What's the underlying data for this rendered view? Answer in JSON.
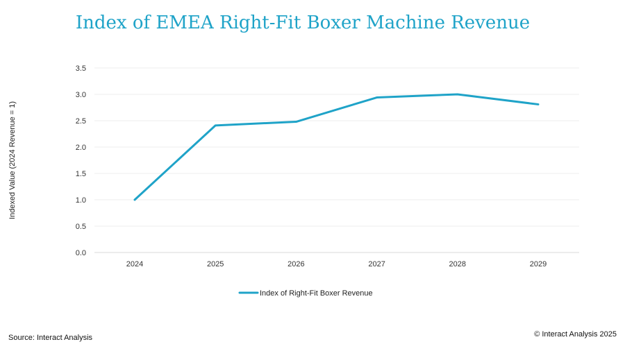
{
  "chart_data": {
    "type": "line",
    "title": "Index of EMEA Right-Fit Boxer Machine Revenue",
    "xlabel": "",
    "ylabel": "Indexed Value (2024 Revenue = 1)",
    "categories": [
      "2024",
      "2025",
      "2026",
      "2027",
      "2028",
      "2029"
    ],
    "series": [
      {
        "name": "Index of Right-Fit Boxer Revenue",
        "values": [
          1.0,
          2.41,
          2.48,
          2.94,
          3.0,
          2.81
        ],
        "color": "#1fa3c8"
      }
    ],
    "ylim": [
      0,
      3.5
    ],
    "yticks": [
      "0.0",
      "0.5",
      "1.0",
      "1.5",
      "2.0",
      "2.5",
      "3.0",
      "3.5"
    ],
    "grid": true,
    "legend": "bottom-center"
  },
  "footer": {
    "source": "Source: Interact Analysis",
    "copyright": "© Interact Analysis 2025"
  }
}
